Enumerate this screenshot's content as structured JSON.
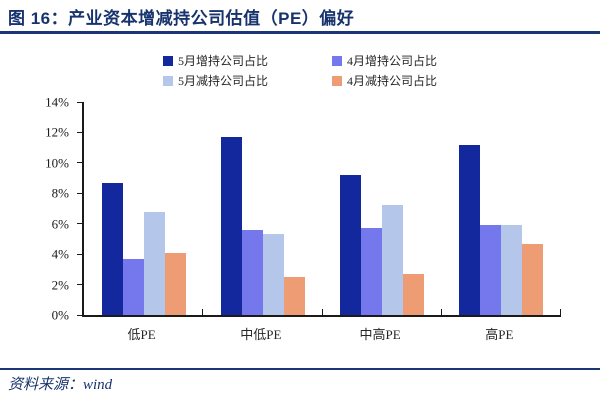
{
  "header": {
    "title": "图 16：产业资本增减持公司估值（PE）偏好"
  },
  "footer": {
    "source": "资料来源：wind"
  },
  "colors": {
    "title_navy": "#17336E",
    "rule_navy": "#1B3676",
    "axis": "#1a1a1a",
    "series_navy": "#13289C",
    "series_periwinkle": "#7478EC",
    "series_lightblue": "#B4C6E9",
    "series_salmon": "#EE9C73"
  },
  "chart_data": {
    "type": "bar",
    "title": "产业资本增减持公司估值（PE）偏好",
    "categories": [
      "低PE",
      "中低PE",
      "中高PE",
      "高PE"
    ],
    "series": [
      {
        "name": "5月增持公司占比",
        "color": "#13289C",
        "values": [
          8.7,
          11.7,
          9.2,
          11.2
        ]
      },
      {
        "name": "4月增持公司占比",
        "color": "#7478EC",
        "values": [
          3.7,
          5.6,
          5.7,
          5.9
        ]
      },
      {
        "name": "5月减持公司占比",
        "color": "#B4C6E9",
        "values": [
          6.8,
          5.3,
          7.2,
          5.9
        ]
      },
      {
        "name": "4月减持公司占比",
        "color": "#EE9C73",
        "values": [
          4.1,
          2.5,
          2.7,
          4.7
        ]
      }
    ],
    "xlabel": "",
    "ylabel": "",
    "ylim": [
      0,
      14
    ],
    "ytick_step": 2,
    "ytick_labels": [
      "0%",
      "2%",
      "4%",
      "6%",
      "8%",
      "10%",
      "12%",
      "14%"
    ],
    "grid": false,
    "legend_position": "top"
  }
}
